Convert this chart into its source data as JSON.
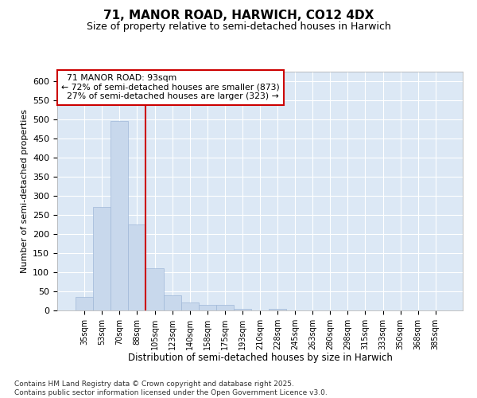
{
  "title": "71, MANOR ROAD, HARWICH, CO12 4DX",
  "subtitle": "Size of property relative to semi-detached houses in Harwich",
  "xlabel": "Distribution of semi-detached houses by size in Harwich",
  "ylabel": "Number of semi-detached properties",
  "property_label": "71 MANOR ROAD: 93sqm",
  "pct_smaller": 72,
  "n_smaller": 873,
  "pct_larger": 27,
  "n_larger": 323,
  "bar_color": "#c8d8ec",
  "bar_edge_color": "#a0b8d8",
  "vline_color": "#cc0000",
  "annotation_box_color": "#cc0000",
  "background_color": "#dce8f5",
  "grid_color": "#ffffff",
  "categories": [
    "35sqm",
    "53sqm",
    "70sqm",
    "88sqm",
    "105sqm",
    "123sqm",
    "140sqm",
    "158sqm",
    "175sqm",
    "193sqm",
    "210sqm",
    "228sqm",
    "245sqm",
    "263sqm",
    "280sqm",
    "298sqm",
    "315sqm",
    "333sqm",
    "350sqm",
    "368sqm",
    "385sqm"
  ],
  "values": [
    35,
    270,
    495,
    225,
    110,
    40,
    20,
    15,
    15,
    5,
    0,
    5,
    0,
    0,
    0,
    0,
    0,
    0,
    0,
    0,
    0
  ],
  "ylim": [
    0,
    625
  ],
  "yticks": [
    0,
    50,
    100,
    150,
    200,
    250,
    300,
    350,
    400,
    450,
    500,
    550,
    600
  ],
  "footer_text": "Contains HM Land Registry data © Crown copyright and database right 2025.\nContains public sector information licensed under the Open Government Licence v3.0.",
  "vline_x_index": 3
}
